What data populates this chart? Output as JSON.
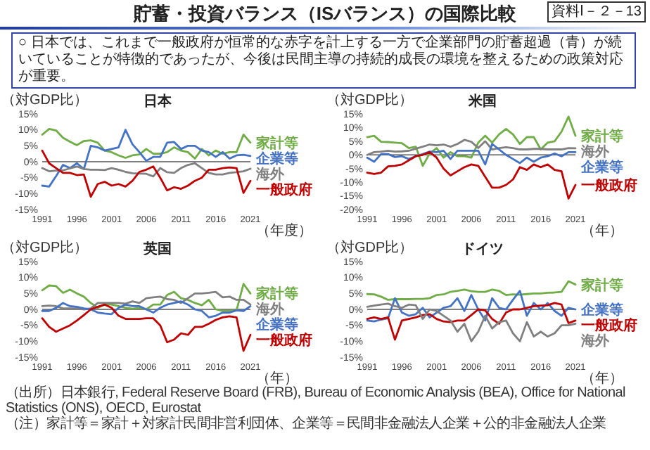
{
  "chart_data": [
    {
      "type": "other",
      "title": "貯蓄・投資バランス（ISバランス）の国際比較",
      "subtitle": "○ 日本では、これまで一般政府が恒常的な赤字を計上する一方で企業部門の貯蓄超過（青）が続いていることが特徴的であったが、今後は民間主導の持続的成長の環境を整えるための政策対応が重要。",
      "annotations": [
        "資料Ⅰ－２－13",
        "（出所）日本銀行, Federal Reserve Board (FRB), Bureau of Economic Analysis (BEA), Office for National Statistics (ONS), OECD, Eurostat",
        "（注）家計等＝家計＋対家計民間非営利団体、企業等＝民間非金融法人企業＋公的非金融法人企業"
      ]
    },
    {
      "type": "line",
      "title": "日本",
      "ylabel": "（対GDP比）",
      "xlabel": "（年度）",
      "legend": "right",
      "xlim": [
        1991,
        2021
      ],
      "xticks": [
        1991,
        1996,
        2001,
        2006,
        2011,
        2016,
        2021
      ],
      "ylim": [
        -15,
        15
      ],
      "yticks": [
        {
          "value": -15,
          "label": "-15%"
        },
        {
          "value": -10,
          "label": "-10%"
        },
        {
          "value": -5,
          "label": "-5%"
        },
        {
          "value": 0,
          "label": "0%"
        },
        {
          "value": 5,
          "label": "5%"
        },
        {
          "value": 10,
          "label": "10%"
        },
        {
          "value": 15,
          "label": "15%"
        }
      ],
      "x": [
        1991,
        1992,
        1993,
        1994,
        1995,
        1996,
        1997,
        1998,
        1999,
        2000,
        2001,
        2002,
        2003,
        2004,
        2005,
        2006,
        2007,
        2008,
        2009,
        2010,
        2011,
        2012,
        2013,
        2014,
        2015,
        2016,
        2017,
        2018,
        2019,
        2020,
        2021
      ],
      "series": [
        {
          "name": "家計等",
          "color": "#70ad47",
          "values": [
            8.5,
            10.3,
            9.8,
            7.5,
            6.3,
            5.2,
            6.5,
            6.7,
            6.0,
            3.5,
            3.0,
            2.0,
            1.2,
            2.0,
            2.3,
            4.0,
            2.5,
            2.5,
            3.0,
            4.5,
            3.5,
            3.0,
            1.0,
            4.0,
            2.0,
            3.5,
            2.5,
            3.0,
            3.0,
            8.5,
            6.0
          ]
        },
        {
          "name": "企業等",
          "color": "#4472c4",
          "values": [
            -7.5,
            -7.8,
            -4.5,
            -1.0,
            -2.0,
            -0.5,
            -2.3,
            5.0,
            4.5,
            3.5,
            4.0,
            4.5,
            10.0,
            5.5,
            3.0,
            0.3,
            1.5,
            1.5,
            6.0,
            6.2,
            4.0,
            5.0,
            5.0,
            3.5,
            3.0,
            1.5,
            3.0,
            1.0,
            2.0,
            2.2,
            1.8
          ]
        },
        {
          "name": "海外",
          "color": "#808080",
          "values": [
            -2.0,
            -3.0,
            -2.8,
            -2.7,
            -2.1,
            -1.5,
            -2.3,
            -2.5,
            -2.5,
            -2.6,
            -2.0,
            -2.5,
            -3.2,
            -3.6,
            -3.7,
            -3.8,
            -4.6,
            -2.0,
            -3.3,
            -3.5,
            -2.0,
            -1.0,
            -0.5,
            -2.0,
            -3.5,
            -4.0,
            -4.0,
            -3.5,
            -3.3,
            -3.0,
            -2.2
          ]
        },
        {
          "name": "一般政府",
          "color": "#c00000",
          "values": [
            3.5,
            -0.5,
            -2.0,
            -3.5,
            -3.5,
            -4.2,
            -4.0,
            -11.0,
            -7.0,
            -6.3,
            -7.5,
            -7.0,
            -7.8,
            -6.0,
            -3.2,
            -2.5,
            -1.5,
            -5.0,
            -9.0,
            -8.0,
            -8.5,
            -7.5,
            -6.0,
            -5.0,
            -2.5,
            -2.5,
            -2.0,
            -1.8,
            -2.0,
            -9.8,
            -6.0
          ]
        }
      ]
    },
    {
      "type": "line",
      "title": "米国",
      "ylabel": "（対GDP比）",
      "xlabel": "（年）",
      "legend": "right",
      "xlim": [
        1991,
        2021
      ],
      "xticks": [
        1991,
        1996,
        2001,
        2006,
        2011,
        2016,
        2021
      ],
      "ylim": [
        -20,
        15
      ],
      "yticks": [
        {
          "value": -20,
          "label": "-20%"
        },
        {
          "value": -15,
          "label": "-15%"
        },
        {
          "value": -10,
          "label": "-10%"
        },
        {
          "value": -5,
          "label": "-5%"
        },
        {
          "value": 0,
          "label": "0%"
        },
        {
          "value": 5,
          "label": "5%"
        },
        {
          "value": 10,
          "label": "10%"
        },
        {
          "value": 15,
          "label": "15%"
        }
      ],
      "x": [
        1991,
        1992,
        1993,
        1994,
        1995,
        1996,
        1997,
        1998,
        1999,
        2000,
        2001,
        2002,
        2003,
        2004,
        2005,
        2006,
        2007,
        2008,
        2009,
        2010,
        2011,
        2012,
        2013,
        2014,
        2015,
        2016,
        2017,
        2018,
        2019,
        2020,
        2021
      ],
      "series": [
        {
          "name": "家計等",
          "color": "#70ad47",
          "values": [
            6.5,
            7.0,
            4.8,
            4.7,
            4.5,
            4.3,
            2.5,
            3.0,
            -4.0,
            0.5,
            2.5,
            -1.0,
            1.0,
            -0.5,
            -0.5,
            -1.0,
            4.5,
            7.0,
            4.5,
            7.5,
            9.5,
            7.5,
            4.0,
            6.5,
            6.5,
            2.0,
            4.5,
            5.0,
            8.5,
            14.0,
            7.0
          ]
        },
        {
          "name": "海外",
          "color": "#808080",
          "values": [
            0,
            1.0,
            1.2,
            1.5,
            1.2,
            1.3,
            1.5,
            2.3,
            3.0,
            3.8,
            3.5,
            3.8,
            3.0,
            4.0,
            5.5,
            4.8,
            2.5,
            5.0,
            2.0,
            2.5,
            2.8,
            2.5,
            2.0,
            2.0,
            2.2,
            2.2,
            2.0,
            2.0,
            2.0,
            2.5,
            2.4
          ]
        },
        {
          "name": "企業等",
          "color": "#4472c4",
          "values": [
            -1.0,
            -2.5,
            0.3,
            0.3,
            -0.8,
            -0.5,
            -1.5,
            -0.5,
            0.3,
            1.2,
            1.0,
            1.5,
            -1.5,
            1.5,
            1.5,
            1.5,
            1.5,
            -3.5,
            4.0,
            2.0,
            0,
            -1.5,
            -3.0,
            -1.0,
            -2.5,
            -1.0,
            -0.5,
            0.5,
            -0.5,
            1.0,
            1.0
          ]
        },
        {
          "name": "一般政府",
          "color": "#c00000",
          "values": [
            -6.5,
            -7.0,
            -6.5,
            -4.2,
            -4.0,
            -3.5,
            -2.0,
            -0.5,
            0,
            1.0,
            -1.0,
            -5.0,
            -7.5,
            -6.0,
            -4.5,
            -3.5,
            -4.0,
            -8.0,
            -12.0,
            -12.0,
            -11.0,
            -9.0,
            -4.5,
            -5.5,
            -3.5,
            -4.5,
            -3.5,
            -5.5,
            -6.0,
            -16.0,
            -11.0
          ]
        }
      ]
    },
    {
      "type": "line",
      "title": "英国",
      "ylabel": "（対GDP比）",
      "xlabel": "（年）",
      "legend": "right",
      "xlim": [
        1991,
        2021
      ],
      "xticks": [
        1991,
        1996,
        2001,
        2006,
        2011,
        2016,
        2021
      ],
      "ylim": [
        -15,
        15
      ],
      "yticks": [
        {
          "value": -15,
          "label": "-15%"
        },
        {
          "value": -10,
          "label": "-10%"
        },
        {
          "value": -5,
          "label": "-5%"
        },
        {
          "value": 0,
          "label": "0%"
        },
        {
          "value": 5,
          "label": "5%"
        },
        {
          "value": 10,
          "label": "10%"
        },
        {
          "value": 15,
          "label": "15%"
        }
      ],
      "x": [
        1991,
        1992,
        1993,
        1994,
        1995,
        1996,
        1997,
        1998,
        1999,
        2000,
        2001,
        2002,
        2003,
        2004,
        2005,
        2006,
        2007,
        2008,
        2009,
        2010,
        2011,
        2012,
        2013,
        2014,
        2015,
        2016,
        2017,
        2018,
        2019,
        2020,
        2021
      ],
      "series": [
        {
          "name": "家計等",
          "color": "#70ad47",
          "values": [
            6.0,
            7.5,
            7.3,
            5.2,
            6.2,
            5.0,
            4.0,
            2.0,
            0.5,
            1.5,
            1.5,
            1.0,
            0.5,
            0.2,
            0.5,
            0,
            1.5,
            1.5,
            4.5,
            5.5,
            3.5,
            3.0,
            2.0,
            1.3,
            3.0,
            0,
            -0.5,
            -0.5,
            -0.3,
            8.0,
            5.0
          ]
        },
        {
          "name": "海外",
          "color": "#808080",
          "values": [
            1.0,
            1.2,
            1.0,
            0.3,
            0.3,
            0.3,
            0,
            0.3,
            2.0,
            2.0,
            2.0,
            2.0,
            1.8,
            2.5,
            2.0,
            3.5,
            3.8,
            4.0,
            3.2,
            3.0,
            2.0,
            3.5,
            5.0,
            5.0,
            5.2,
            5.5,
            3.8,
            4.0,
            3.0,
            3.0,
            1.5
          ]
        },
        {
          "name": "企業等",
          "color": "#4472c4",
          "values": [
            -0.5,
            -0.5,
            0.5,
            2.0,
            1.0,
            0.8,
            0.3,
            0,
            -1.0,
            -1.3,
            -1.5,
            0.5,
            1.5,
            1.0,
            1.0,
            0,
            -1.0,
            0.5,
            1.5,
            2.0,
            2.5,
            1.5,
            0,
            -0.5,
            -2.5,
            -2.0,
            -1.0,
            -1.0,
            -0.3,
            -0.5,
            1.0
          ]
        },
        {
          "name": "一般政府",
          "color": "#c00000",
          "values": [
            -2.8,
            -5.5,
            -7.0,
            -6.0,
            -5.0,
            -3.5,
            -1.8,
            0,
            0.8,
            1.5,
            0.5,
            -2.0,
            -3.0,
            -3.0,
            -3.0,
            -2.8,
            -2.8,
            -5.0,
            -10.3,
            -9.5,
            -7.5,
            -8.0,
            -5.5,
            -5.5,
            -4.5,
            -3.3,
            -2.5,
            -2.2,
            -2.5,
            -13.0,
            -8.0
          ]
        }
      ]
    },
    {
      "type": "line",
      "title": "ドイツ",
      "ylabel": "（対GDP比）",
      "xlabel": "（年）",
      "legend": "right",
      "xlim": [
        1991,
        2021
      ],
      "xticks": [
        1991,
        1996,
        2001,
        2006,
        2011,
        2016,
        2021
      ],
      "ylim": [
        -15,
        15
      ],
      "yticks": [
        {
          "value": -15,
          "label": "-15%"
        },
        {
          "value": -10,
          "label": "-10%"
        },
        {
          "value": -5,
          "label": "-5%"
        },
        {
          "value": 0,
          "label": "0%"
        },
        {
          "value": 5,
          "label": "5%"
        },
        {
          "value": 10,
          "label": "10%"
        },
        {
          "value": 15,
          "label": "15%"
        }
      ],
      "x": [
        1991,
        1992,
        1993,
        1994,
        1995,
        1996,
        1997,
        1998,
        1999,
        2000,
        2001,
        2002,
        2003,
        2004,
        2005,
        2006,
        2007,
        2008,
        2009,
        2010,
        2011,
        2012,
        2013,
        2014,
        2015,
        2016,
        2017,
        2018,
        2019,
        2020,
        2021
      ],
      "series": [
        {
          "name": "家計等",
          "color": "#70ad47",
          "values": [
            4.8,
            4.7,
            4.0,
            3.0,
            3.2,
            3.2,
            3.2,
            3.3,
            3.3,
            3.5,
            4.5,
            4.7,
            5.5,
            5.8,
            6.2,
            5.7,
            5.5,
            5.5,
            6.2,
            5.8,
            4.5,
            4.7,
            4.6,
            4.8,
            5.0,
            5.0,
            5.2,
            5.3,
            5.5,
            8.8,
            7.8
          ]
        },
        {
          "name": "企業等",
          "color": "#4472c4",
          "values": [
            -3.5,
            -3.8,
            -3.2,
            -2.8,
            3.5,
            -1.0,
            -2.0,
            -1.5,
            0.5,
            -2.5,
            -1.0,
            0.5,
            1.0,
            3.5,
            -0.5,
            4.5,
            0,
            -3.5,
            3.5,
            0.5,
            0,
            3.0,
            5.8,
            -2.0,
            2.0,
            0,
            2.0,
            -0.5,
            -2.0,
            0.5,
            0
          ]
        },
        {
          "name": "一般政府",
          "color": "#c00000",
          "values": [
            -3.0,
            -2.5,
            -3.0,
            -2.5,
            -9.5,
            -3.5,
            -3.0,
            -2.5,
            -1.8,
            -1.5,
            -3.0,
            -3.8,
            -4.0,
            -3.5,
            -3.5,
            -1.8,
            0,
            -0.3,
            -3.0,
            -4.5,
            -1.0,
            0,
            0,
            0.5,
            1.0,
            1.2,
            1.3,
            2.0,
            1.5,
            -4.3,
            -3.5
          ]
        },
        {
          "name": "海外",
          "color": "#808080",
          "values": [
            0.8,
            1.2,
            1.5,
            1.8,
            1.0,
            0.5,
            1.5,
            1.3,
            -3.0,
            0,
            -0.5,
            -2.0,
            -3.5,
            -7.0,
            -4.5,
            -10.0,
            -7.0,
            -2.0,
            -6.0,
            -4.0,
            -3.5,
            -7.5,
            -10.0,
            -4.0,
            -8.5,
            -7.0,
            -8.5,
            -7.5,
            -5.0,
            -5.0,
            -4.5
          ]
        }
      ]
    }
  ]
}
